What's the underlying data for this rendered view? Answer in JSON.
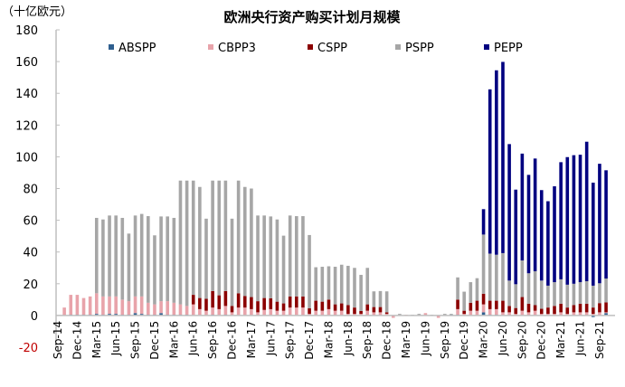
{
  "chart_data": {
    "type": "bar",
    "stacked": true,
    "title": "欧洲央行资产购买计划月规模",
    "ylabel": "（十亿欧元）",
    "xlabel": "",
    "ylim": [
      -20,
      180
    ],
    "yticks": [
      -20,
      0,
      20,
      40,
      60,
      80,
      100,
      120,
      140,
      160,
      180
    ],
    "grid": false,
    "legend_position": "top",
    "xtick_labels": [
      "Sep-14",
      "Dec-14",
      "Mar-15",
      "Jun-15",
      "Sep-15",
      "Dec-15",
      "Mar-16",
      "Jun-16",
      "Sep-16",
      "Dec-16",
      "Mar-17",
      "Jun-17",
      "Sep-17",
      "Dec-17",
      "Mar-18",
      "Jun-18",
      "Sep-18",
      "Dec-18",
      "Mar-19",
      "Jun-19",
      "Sep-19",
      "Dec-19",
      "Mar-20",
      "Jun-20",
      "Sep-20",
      "Dec-20",
      "Mar-21",
      "Jun-21",
      "Sep-21"
    ],
    "categories": [
      "Sep-14",
      "Oct-14",
      "Nov-14",
      "Dec-14",
      "Jan-15",
      "Feb-15",
      "Mar-15",
      "Apr-15",
      "May-15",
      "Jun-15",
      "Jul-15",
      "Aug-15",
      "Sep-15",
      "Oct-15",
      "Nov-15",
      "Dec-15",
      "Jan-16",
      "Feb-16",
      "Mar-16",
      "Apr-16",
      "May-16",
      "Jun-16",
      "Jul-16",
      "Aug-16",
      "Sep-16",
      "Oct-16",
      "Nov-16",
      "Dec-16",
      "Jan-17",
      "Feb-17",
      "Mar-17",
      "Apr-17",
      "May-17",
      "Jun-17",
      "Jul-17",
      "Aug-17",
      "Sep-17",
      "Oct-17",
      "Nov-17",
      "Dec-17",
      "Jan-18",
      "Feb-18",
      "Mar-18",
      "Apr-18",
      "May-18",
      "Jun-18",
      "Jul-18",
      "Aug-18",
      "Sep-18",
      "Oct-18",
      "Nov-18",
      "Dec-18",
      "Jan-19",
      "Feb-19",
      "Mar-19",
      "Apr-19",
      "May-19",
      "Jun-19",
      "Jul-19",
      "Aug-19",
      "Sep-19",
      "Oct-19",
      "Nov-19",
      "Dec-19",
      "Jan-20",
      "Feb-20",
      "Mar-20",
      "Apr-20",
      "May-20",
      "Jun-20",
      "Jul-20",
      "Aug-20",
      "Sep-20",
      "Oct-20",
      "Nov-20",
      "Dec-20",
      "Jan-21",
      "Feb-21",
      "Mar-21",
      "Apr-21",
      "May-21",
      "Jun-21",
      "Jul-21",
      "Aug-21",
      "Sep-21",
      "Oct-21"
    ],
    "series": [
      {
        "name": "ABSPP",
        "color": "#2F5F8F",
        "values": [
          0,
          0,
          0.5,
          0.5,
          0.5,
          0.5,
          1,
          0.5,
          1,
          1,
          0.5,
          0.5,
          1.5,
          1,
          0.5,
          0.5,
          1.5,
          0.5,
          0.5,
          0.5,
          0.5,
          0.3,
          0.3,
          0.2,
          0.5,
          0.3,
          0.5,
          0.2,
          0.3,
          0.3,
          0.3,
          0.2,
          0.3,
          0.3,
          0.2,
          0.2,
          0.3,
          0.3,
          0.3,
          0.1,
          0.2,
          0.2,
          0.3,
          0.2,
          0.2,
          0.1,
          0.1,
          0.1,
          0.2,
          0.2,
          0.2,
          0.1,
          0,
          0,
          0,
          0,
          0,
          0,
          0,
          0,
          0,
          0.5,
          0.5,
          0.2,
          0.3,
          0.3,
          2,
          0.5,
          0.5,
          0.3,
          0.3,
          0.2,
          0.3,
          0.2,
          0.3,
          0.1,
          0.1,
          0.1,
          0.2,
          0.1,
          0.2,
          0.2,
          0.2,
          -1,
          0.2,
          1.5
        ]
      },
      {
        "name": "CBPP3",
        "color": "#E8A3AA",
        "values": [
          0,
          5,
          12.5,
          12.5,
          10.5,
          11.5,
          13,
          11.5,
          11,
          11,
          9.5,
          8.5,
          10.5,
          11,
          7.5,
          6.5,
          7.5,
          8.5,
          7.5,
          6.5,
          5.5,
          6.7,
          3.7,
          2.8,
          4.5,
          3.7,
          5.5,
          1.8,
          4.7,
          4.7,
          3.7,
          1.8,
          3.2,
          3.7,
          2.8,
          2.8,
          4.7,
          4.7,
          4.7,
          0.9,
          2.8,
          2.8,
          3.7,
          2.8,
          2.8,
          0.9,
          0.9,
          0.9,
          2.8,
          1.8,
          1.8,
          0.9,
          -1.5,
          0,
          0.5,
          0,
          0,
          1.5,
          0,
          -1.5,
          0,
          0,
          3.5,
          0.8,
          2.7,
          2.7,
          5,
          3.5,
          3.5,
          1.7,
          1.7,
          0.8,
          2.7,
          1.8,
          2.7,
          0.9,
          0.9,
          0.9,
          1.8,
          0.9,
          1.8,
          1.8,
          1.8,
          1,
          1.8,
          0.5
        ]
      },
      {
        "name": "CSPP",
        "color": "#8B0000",
        "values": [
          0,
          0,
          0,
          0,
          0,
          0,
          0,
          0,
          0,
          0,
          0,
          0,
          0,
          0,
          0,
          0,
          0,
          0,
          0,
          0,
          0,
          6,
          7,
          7.5,
          10.4,
          8.7,
          9.4,
          4,
          9,
          7.3,
          7.6,
          7,
          7.5,
          6.8,
          5.7,
          4.6,
          7,
          7,
          7,
          3.5,
          6.3,
          5.7,
          6,
          4,
          4.6,
          5.5,
          4,
          1.8,
          4,
          3.3,
          3.3,
          1,
          0,
          0,
          0,
          0,
          0,
          0,
          0,
          0,
          0,
          0,
          6,
          2,
          5,
          6.3,
          6.7,
          5.3,
          5.3,
          7.3,
          4,
          3.7,
          8.6,
          5.4,
          3.5,
          3.2,
          4,
          5,
          5.4,
          4,
          4.5,
          5.4,
          5.4,
          4,
          5.8,
          6.2
        ]
      },
      {
        "name": "PSPP",
        "color": "#A6A6A6",
        "values": [
          0,
          0,
          0,
          0,
          0,
          0,
          47.5,
          48.5,
          51,
          51,
          51.5,
          42.6,
          51,
          52,
          54.6,
          43.5,
          53.4,
          53.4,
          53.5,
          78,
          79,
          72,
          70,
          50.5,
          69.6,
          72.3,
          69.6,
          55,
          71,
          68.7,
          68.4,
          54,
          52,
          51.6,
          51.8,
          42.7,
          51,
          50.6,
          50.6,
          46.2,
          21.1,
          22,
          21,
          23.7,
          24.4,
          24.8,
          25,
          22.8,
          23,
          9.9,
          10.1,
          13.2,
          0,
          1,
          0,
          0.5,
          1,
          0,
          0.5,
          0,
          1,
          0.5,
          14,
          12,
          13,
          14.2,
          37.3,
          29.7,
          29,
          30,
          16,
          15,
          23.1,
          19.2,
          21.4,
          17.8,
          13.8,
          15,
          15.4,
          14.4,
          13.5,
          13.6,
          14.2,
          13.8,
          12.5,
          15.1
        ]
      },
      {
        "name": "PEPP",
        "color": "#000080",
        "values": [
          0,
          0,
          0,
          0,
          0,
          0,
          0,
          0,
          0,
          0,
          0,
          0,
          0,
          0,
          0,
          0,
          0,
          0,
          0,
          0,
          0,
          0,
          0,
          0,
          0,
          0,
          0,
          0,
          0,
          0,
          0,
          0,
          0,
          0,
          0,
          0,
          0,
          0,
          0,
          0,
          0,
          0,
          0,
          0,
          0,
          0,
          0,
          0,
          0,
          0,
          0,
          0,
          0,
          0,
          0,
          0,
          0,
          0,
          0,
          0,
          0,
          0,
          0,
          0,
          0,
          0,
          16,
          103.5,
          116.2,
          120.5,
          86,
          59.6,
          67.3,
          62,
          71,
          57,
          53.2,
          60.4,
          73.8,
          80.4,
          81,
          80.3,
          87.9,
          64.9,
          75.3,
          68.2
        ]
      }
    ],
    "negative_tick_color": "#C00000"
  }
}
